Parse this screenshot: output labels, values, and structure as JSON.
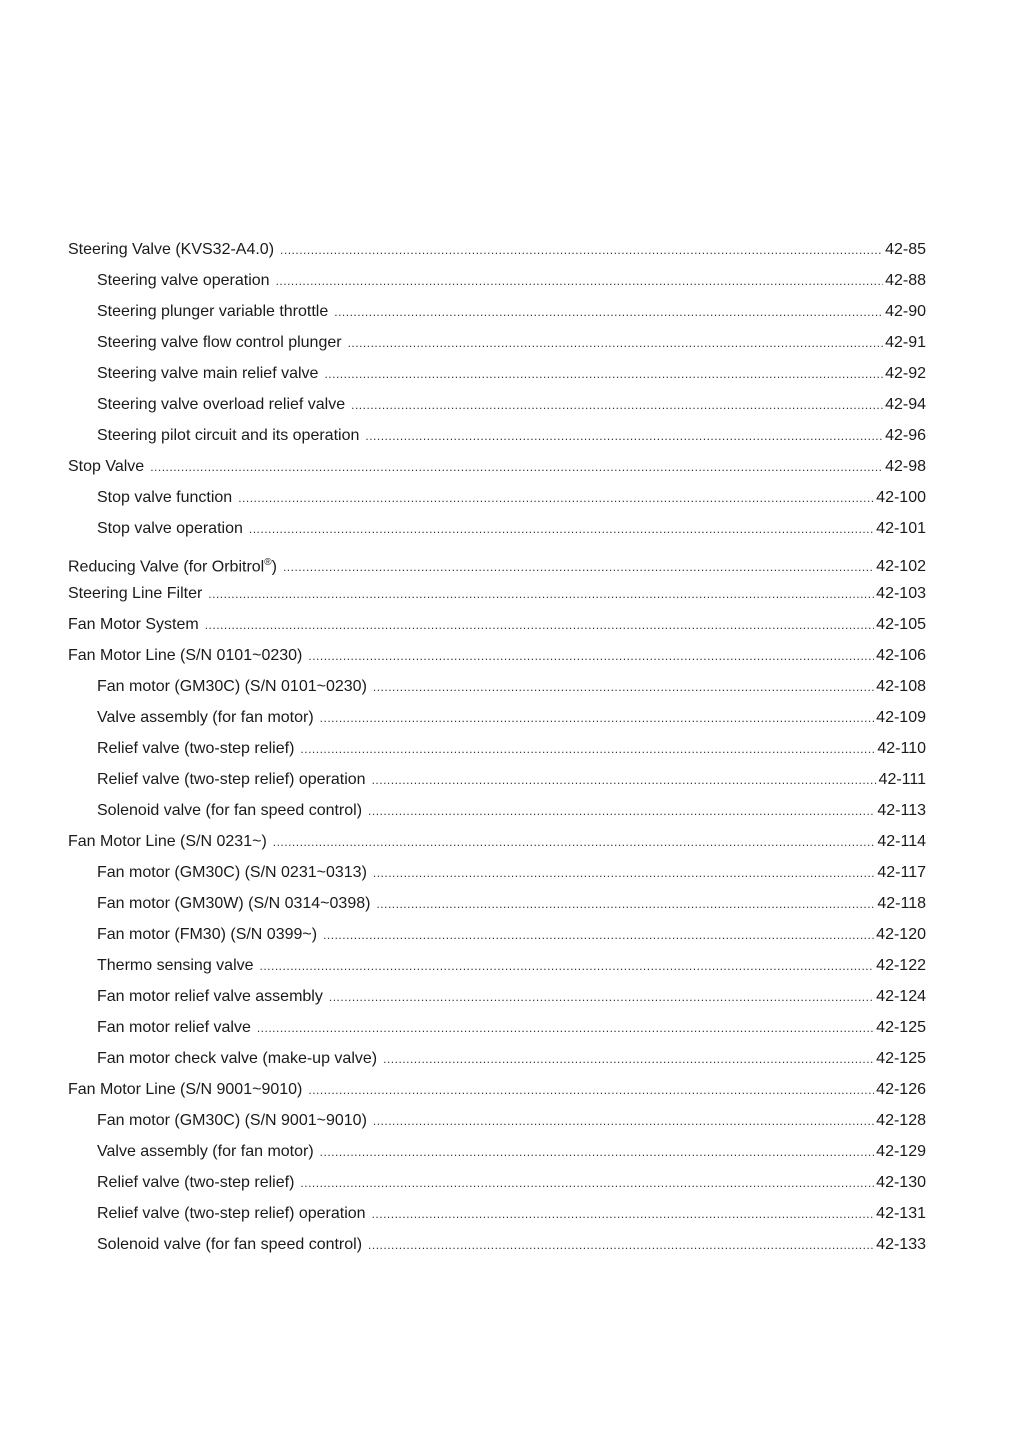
{
  "toc": [
    {
      "title": "Steering Valve (KVS32-A4.0)",
      "page": "42-85",
      "level": 1
    },
    {
      "title": "Steering valve operation",
      "page": "42-88",
      "level": 2
    },
    {
      "title": "Steering plunger variable throttle",
      "page": "42-90",
      "level": 2
    },
    {
      "title": "Steering valve flow control plunger",
      "page": "42-91",
      "level": 2
    },
    {
      "title": "Steering valve main relief valve",
      "page": "42-92",
      "level": 2
    },
    {
      "title": "Steering valve overload relief valve",
      "page": "42-94",
      "level": 2
    },
    {
      "title": "Steering pilot circuit and its operation",
      "page": "42-96",
      "level": 2
    },
    {
      "title": "Stop Valve",
      "page": "42-98",
      "level": 1
    },
    {
      "title": "Stop valve function",
      "page": "42-100",
      "level": 2
    },
    {
      "title": "Stop valve operation",
      "page": "42-101",
      "level": 2
    },
    {
      "title": "Reducing Valve (for Orbitrol",
      "sup": "®",
      "title_end": ")",
      "page": "42-102",
      "level": 1
    },
    {
      "title": "Steering Line Filter",
      "page": "42-103",
      "level": 1
    },
    {
      "title": "Fan Motor System",
      "page": "42-105",
      "level": 1
    },
    {
      "title": "Fan Motor Line (S/N 0101~0230)",
      "page": "42-106",
      "level": 1
    },
    {
      "title": "Fan motor (GM30C) (S/N 0101~0230)",
      "page": "42-108",
      "level": 2
    },
    {
      "title": "Valve assembly (for fan motor)",
      "page": "42-109",
      "level": 2
    },
    {
      "title": "Relief valve (two-step relief)",
      "page": "42-110",
      "level": 2
    },
    {
      "title": "Relief valve (two-step relief) operation",
      "page": "42-111",
      "level": 2
    },
    {
      "title": "Solenoid valve (for fan speed control)",
      "page": "42-113",
      "level": 2
    },
    {
      "title": "Fan Motor Line (S/N 0231~)",
      "page": "42-114",
      "level": 1
    },
    {
      "title": "Fan motor (GM30C) (S/N 0231~0313)",
      "page": "42-117",
      "level": 2
    },
    {
      "title": "Fan motor (GM30W) (S/N 0314~0398)",
      "page": "42-118",
      "level": 2
    },
    {
      "title": "Fan motor (FM30) (S/N 0399~)",
      "page": "42-120",
      "level": 2
    },
    {
      "title": "Thermo sensing valve",
      "page": "42-122",
      "level": 2
    },
    {
      "title": "Fan motor relief valve assembly",
      "page": "42-124",
      "level": 2
    },
    {
      "title": "Fan motor relief valve",
      "page": "42-125",
      "level": 2
    },
    {
      "title": "Fan motor check valve (make-up valve)",
      "page": "42-125",
      "level": 2
    },
    {
      "title": "Fan Motor Line (S/N 9001~9010)",
      "page": "42-126",
      "level": 1
    },
    {
      "title": "Fan motor (GM30C) (S/N 9001~9010)",
      "page": "42-128",
      "level": 2
    },
    {
      "title": "Valve assembly (for fan motor)",
      "page": "42-129",
      "level": 2
    },
    {
      "title": "Relief valve (two-step relief)",
      "page": "42-130",
      "level": 2
    },
    {
      "title": "Relief valve (two-step relief) operation",
      "page": "42-131",
      "level": 2
    },
    {
      "title": "Solenoid valve (for fan speed control)",
      "page": "42-133",
      "level": 2
    }
  ]
}
